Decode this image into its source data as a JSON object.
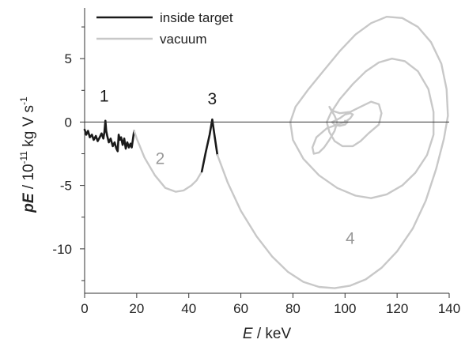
{
  "chart_data": {
    "type": "line",
    "title": "",
    "xlabel": {
      "italic": "E",
      "rest": " / keV"
    },
    "ylabel": {
      "bold": "pE",
      "rest": " / 10",
      "exp1": "-11",
      "mid": " kg V s",
      "exp2": "-1"
    },
    "xlim": [
      0,
      140
    ],
    "ylim": [
      -13.5,
      9
    ],
    "x_ticks": [
      0,
      20,
      40,
      60,
      80,
      100,
      120,
      140
    ],
    "x_tick_labels": [
      "0",
      "20",
      "40",
      "60",
      "80",
      "100",
      "120",
      "140"
    ],
    "y_ticks": [
      5,
      0,
      -5,
      -10
    ],
    "y_tick_labels": [
      "5",
      "0",
      "-5",
      "-10"
    ],
    "y_minor_ticks": [
      7.5,
      2.5,
      -2.5,
      -7.5,
      -12.5
    ],
    "grid": false,
    "legend_position": "top-left",
    "legend": [
      {
        "label": "inside target",
        "color": "#1a1a1a"
      },
      {
        "label": "vacuum",
        "color": "#c8c8c8"
      }
    ],
    "annotations": [
      {
        "text": "1",
        "x": 7.5,
        "y": 1.6,
        "color": "#1a1a1a"
      },
      {
        "text": "2",
        "x": 29,
        "y": -3.3,
        "color": "#999999"
      },
      {
        "text": "3",
        "x": 49,
        "y": 1.4,
        "color": "#1a1a1a"
      },
      {
        "text": "4",
        "x": 102,
        "y": -9.6,
        "color": "#999999"
      }
    ],
    "series": [
      {
        "style": "inside",
        "color": "#1a1a1a",
        "x": [
          0,
          0.6,
          1.3,
          2.0,
          2.8,
          3.5,
          4.3,
          5.0,
          5.8,
          6.5,
          7.2,
          7.6,
          8.0,
          8.3,
          8.7,
          9.3,
          10.0,
          10.8,
          11.5,
          12.2,
          12.7,
          13.1,
          13.5,
          14.0,
          14.6,
          15.2,
          15.8,
          16.4,
          17.0,
          17.6,
          18.1,
          18.6,
          19.0
        ],
        "y": [
          -0.6,
          -1.0,
          -0.7,
          -1.2,
          -1.0,
          -1.4,
          -1.1,
          -1.5,
          -1.2,
          -0.9,
          -1.3,
          -0.8,
          0.1,
          -0.7,
          -1.1,
          -1.6,
          -1.3,
          -1.9,
          -1.6,
          -2.1,
          -2.3,
          -1.0,
          -1.4,
          -1.2,
          -1.8,
          -1.3,
          -2.1,
          -1.6,
          -2.0,
          -1.7,
          -2.0,
          -1.3,
          -0.7
        ]
      },
      {
        "style": "vacuum",
        "color": "#c8c8c8",
        "x": [
          19.0,
          20.0,
          23.0,
          27.0,
          31.0,
          35.0,
          38.0,
          41.0,
          43.0,
          45.0
        ],
        "y": [
          -0.7,
          -1.3,
          -2.8,
          -4.2,
          -5.2,
          -5.5,
          -5.4,
          -5.0,
          -4.6,
          -3.9
        ]
      },
      {
        "style": "inside",
        "color": "#1a1a1a",
        "x": [
          45.0,
          46.5,
          48.0,
          49.0,
          50.0,
          51.0
        ],
        "y": [
          -3.9,
          -2.4,
          -1.0,
          0.2,
          -1.2,
          -2.6
        ]
      },
      {
        "style": "vacuum",
        "color": "#c8c8c8",
        "x": [
          51.0,
          55.0,
          60.0,
          66.0,
          72.0,
          78.0,
          84.0,
          90.0,
          96.0,
          102.0,
          108.0,
          114.0,
          120.0,
          126.0,
          131.0,
          135.0,
          138.0,
          139.5,
          139.0,
          137.0,
          133.0,
          128.0,
          122.0,
          116.0,
          110.0,
          104.0,
          98.0,
          92.0,
          86.0,
          81.0,
          79.0,
          80.0,
          84.0,
          90.0,
          97.0,
          104.0,
          110.0,
          116.0,
          122.0,
          127.0,
          131.5,
          134.0,
          134.0,
          132.0,
          128.0,
          123.0,
          118.0,
          113.0,
          108.0,
          103.0,
          98.0,
          94.5,
          93.0,
          94.0,
          96.0,
          99.0,
          103.0,
          106.0,
          109.0,
          113.0,
          114.0,
          113.0,
          110.0,
          106.0,
          102.0,
          98.0,
          95.0,
          94.0,
          94.5,
          96.0,
          97.0,
          96.0,
          94.0,
          92.0,
          90.0,
          88.0,
          87.5,
          89.0,
          93.0,
          97.0,
          100.0,
          102.0,
          103.0,
          102.0,
          100.0,
          98.0,
          96.0,
          95.0,
          96.0,
          98.0,
          100.0,
          101.0,
          100.0
        ],
        "y": [
          -2.6,
          -4.8,
          -7.0,
          -9.0,
          -10.6,
          -11.8,
          -12.6,
          -13.0,
          -13.1,
          -12.9,
          -12.4,
          -11.5,
          -10.2,
          -8.4,
          -6.2,
          -3.7,
          -1.3,
          0.5,
          2.6,
          4.6,
          6.3,
          7.5,
          8.2,
          8.3,
          7.8,
          6.9,
          5.6,
          4.1,
          2.6,
          1.2,
          0.0,
          -1.4,
          -2.9,
          -4.2,
          -5.2,
          -5.8,
          -6.0,
          -5.7,
          -5.0,
          -4.0,
          -2.6,
          -1.0,
          0.8,
          2.6,
          4.0,
          4.8,
          5.0,
          4.7,
          4.0,
          3.0,
          1.8,
          0.7,
          0.0,
          -0.8,
          -1.5,
          -1.9,
          -1.9,
          -1.5,
          -0.9,
          -0.2,
          0.7,
          1.4,
          1.6,
          1.2,
          0.8,
          0.7,
          0.9,
          1.2,
          1.0,
          0.5,
          0.0,
          -0.7,
          -1.4,
          -2.0,
          -2.4,
          -2.5,
          -2.0,
          -1.2,
          -0.5,
          -0.2,
          0.0,
          0.3,
          0.6,
          0.7,
          0.6,
          0.3,
          0.1,
          0.0,
          -0.2,
          -0.3,
          -0.2,
          0.0,
          0.1
        ]
      }
    ]
  }
}
